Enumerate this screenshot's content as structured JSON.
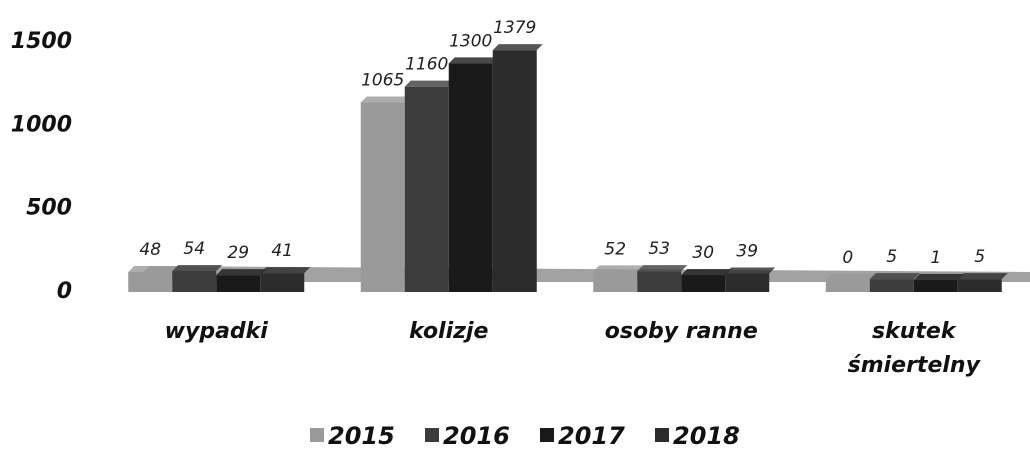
{
  "chart_data": {
    "type": "bar",
    "categories": [
      "wypadki",
      "kolizje",
      "osoby ranne",
      "skutek śmiertelny"
    ],
    "series": [
      {
        "name": "2015",
        "color": "#9a9a9a",
        "values": [
          48,
          1065,
          52,
          0
        ]
      },
      {
        "name": "2016",
        "color": "#3c3c3c",
        "values": [
          54,
          1160,
          53,
          5
        ]
      },
      {
        "name": "2017",
        "color": "#1a1a1a",
        "values": [
          29,
          1300,
          30,
          1
        ]
      },
      {
        "name": "2018",
        "color": "#2c2c2c",
        "values": [
          41,
          1379,
          39,
          5
        ]
      }
    ],
    "ylim": [
      0,
      1500
    ],
    "yticks": [
      0,
      500,
      1000,
      1500
    ],
    "grid": false,
    "legend": "bottom"
  }
}
